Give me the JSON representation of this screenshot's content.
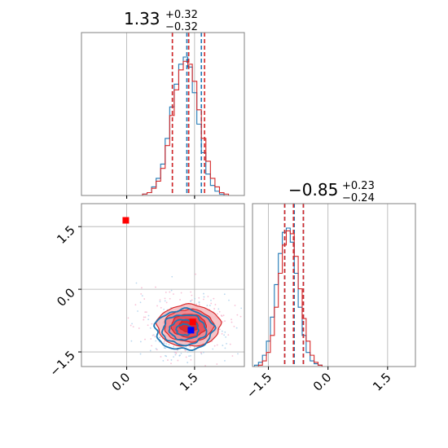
{
  "chart_data": [
    {
      "type": "histogram",
      "panel": "marginal-param-1",
      "title": {
        "median": "1.33",
        "plus": "+0.32",
        "minus": "−0.32"
      },
      "xlim": [
        -1.0,
        2.6
      ],
      "series": [
        {
          "name": "",
          "color": "#1f77b4",
          "median": 1.33,
          "q16": 1.01,
          "q84": 1.65,
          "bins_x": [
            0.4,
            0.5,
            0.6,
            0.7,
            0.8,
            0.9,
            1.0,
            1.1,
            1.2,
            1.3,
            1.4,
            1.5,
            1.6,
            1.7,
            1.8,
            1.9,
            2.0,
            2.1
          ],
          "counts": [
            1,
            2,
            6,
            12,
            22,
            40,
            62,
            78,
            92,
            97,
            90,
            72,
            50,
            30,
            15,
            7,
            3,
            1
          ]
        },
        {
          "name": "",
          "color": "#d62728",
          "median": 1.37,
          "q16": 1.01,
          "q84": 1.72,
          "bins_x": [
            0.4,
            0.5,
            0.6,
            0.7,
            0.8,
            0.9,
            1.0,
            1.1,
            1.2,
            1.3,
            1.4,
            1.5,
            1.6,
            1.7,
            1.8,
            1.9,
            2.0,
            2.1,
            2.2
          ],
          "counts": [
            1,
            2,
            5,
            10,
            19,
            35,
            56,
            74,
            88,
            94,
            92,
            80,
            60,
            40,
            24,
            12,
            6,
            2,
            1
          ]
        }
      ]
    },
    {
      "type": "histogram",
      "panel": "marginal-param-2",
      "title": {
        "median": "−0.85",
        "plus": "+0.23",
        "minus": "−0.24"
      },
      "xlim": [
        -1.9,
        2.2
      ],
      "xticks": [
        "−1.5",
        "0.0",
        "1.5"
      ],
      "series": [
        {
          "name": "",
          "color": "#1f77b4",
          "median": -0.85,
          "q16": -1.09,
          "q84": -0.62,
          "bins_x": [
            -1.8,
            -1.7,
            -1.6,
            -1.5,
            -1.4,
            -1.3,
            -1.2,
            -1.1,
            -1.0,
            -0.9,
            -0.8,
            -0.7,
            -0.6,
            -0.5,
            -0.4,
            -0.3,
            -0.2
          ],
          "counts": [
            1,
            3,
            8,
            18,
            35,
            58,
            80,
            95,
            98,
            88,
            66,
            42,
            22,
            10,
            4,
            2,
            1
          ]
        },
        {
          "name": "",
          "color": "#d62728",
          "median": -0.87,
          "q16": -1.09,
          "q84": -0.62,
          "bins_x": [
            -1.8,
            -1.7,
            -1.6,
            -1.5,
            -1.4,
            -1.3,
            -1.2,
            -1.1,
            -1.0,
            -0.9,
            -0.8,
            -0.7,
            -0.6,
            -0.5,
            -0.4,
            -0.3,
            -0.2
          ],
          "counts": [
            0,
            1,
            4,
            10,
            22,
            42,
            66,
            86,
            96,
            94,
            78,
            55,
            34,
            18,
            8,
            3,
            1
          ]
        }
      ]
    },
    {
      "type": "contour",
      "panel": "joint",
      "xlim": [
        -1.0,
        2.6
      ],
      "ylim": [
        -1.85,
        2.05
      ],
      "xticks": [
        "0.0",
        "1.5"
      ],
      "yticks": [
        "1.5",
        "0.0",
        "−1.5"
      ],
      "grid": true,
      "series": [
        {
          "name": "",
          "color": "#1f77b4",
          "center": [
            1.27,
            -0.97
          ],
          "sigma": [
            0.32,
            0.24
          ],
          "filled": false
        },
        {
          "name": "",
          "color": "#d62728",
          "center": [
            1.37,
            -0.87
          ],
          "sigma": [
            0.35,
            0.25
          ],
          "filled": true
        }
      ],
      "markers": [
        {
          "color": "#ff0000",
          "x": -0.02,
          "y": 1.65
        },
        {
          "color": "#ff0000",
          "x": 1.46,
          "y": -0.78
        },
        {
          "color": "#0000ff",
          "x": 1.42,
          "y": -0.98
        }
      ]
    }
  ]
}
